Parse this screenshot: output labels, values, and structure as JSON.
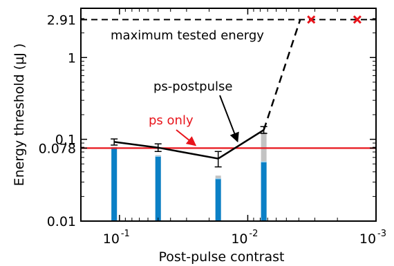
{
  "chart_data": {
    "type": "line",
    "title": "",
    "xlabel": "Post-pulse contrast",
    "ylabel": "Energy threshold (µJ )",
    "x_scale": "log",
    "x_reversed": true,
    "y_scale": "log",
    "xlim": [
      0.2,
      0.001
    ],
    "ylim": [
      0.01,
      4.0
    ],
    "x_ticks": [
      {
        "value": 0.1,
        "base": "10",
        "exp": "-1"
      },
      {
        "value": 0.01,
        "base": "10",
        "exp": "-2"
      },
      {
        "value": 0.001,
        "base": "10",
        "exp": "-3"
      }
    ],
    "y_ticks": [
      {
        "value": 0.01,
        "label": "0.01"
      },
      {
        "value": 0.078,
        "label": "0.078"
      },
      {
        "value": 0.1,
        "label": "0.1"
      },
      {
        "value": 1,
        "label": "1"
      },
      {
        "value": 2.91,
        "label": "2.91"
      }
    ],
    "reference_lines": [
      {
        "label": "maximum tested energy",
        "y": 2.91,
        "color": "#000000",
        "style": "dashed"
      },
      {
        "label": "ps only",
        "y": 0.078,
        "color": "#e8141b",
        "style": "solid"
      }
    ],
    "series": [
      {
        "name": "ps-postpulse",
        "color": "#000000",
        "points": [
          {
            "x": 0.11,
            "y": 0.093,
            "err_low": 0.085,
            "err_high": 0.101
          },
          {
            "x": 0.05,
            "y": 0.079,
            "err_low": 0.071,
            "err_high": 0.088
          },
          {
            "x": 0.017,
            "y": 0.058,
            "err_low": 0.046,
            "err_high": 0.071
          },
          {
            "x": 0.0075,
            "y": 0.13,
            "err_low": 0.118,
            "err_high": 0.143
          }
        ],
        "extension": {
          "style": "dashed",
          "points": [
            {
              "x": 0.0075,
              "y": 0.13
            },
            {
              "x": 0.0039,
              "y": 2.91
            }
          ]
        }
      }
    ],
    "bars": [
      {
        "x": 0.11,
        "blue": 0.078,
        "gray": 0.081
      },
      {
        "x": 0.05,
        "blue": 0.062,
        "gray": 0.064
      },
      {
        "x": 0.017,
        "blue": 0.033,
        "gray": 0.036
      },
      {
        "x": 0.0075,
        "blue": 0.053,
        "gray": 0.122
      }
    ],
    "markers": [
      {
        "x": 0.0032,
        "y": 2.91,
        "symbol": "x",
        "color": "#e8141b"
      },
      {
        "x": 0.0014,
        "y": 2.91,
        "symbol": "x",
        "color": "#e8141b"
      }
    ],
    "annotations": [
      {
        "text": "ps-postpulse",
        "arrow_to": {
          "x": 0.012,
          "y": 0.094
        }
      },
      {
        "text": "ps only",
        "arrow_to": {
          "x": 0.055,
          "y": 0.081
        }
      }
    ],
    "colors": {
      "bar_blue": "#0a80c6",
      "bar_gray": "#c3c3c3",
      "red": "#e8141b",
      "black": "#000000"
    },
    "grid": false,
    "legend": "none"
  }
}
